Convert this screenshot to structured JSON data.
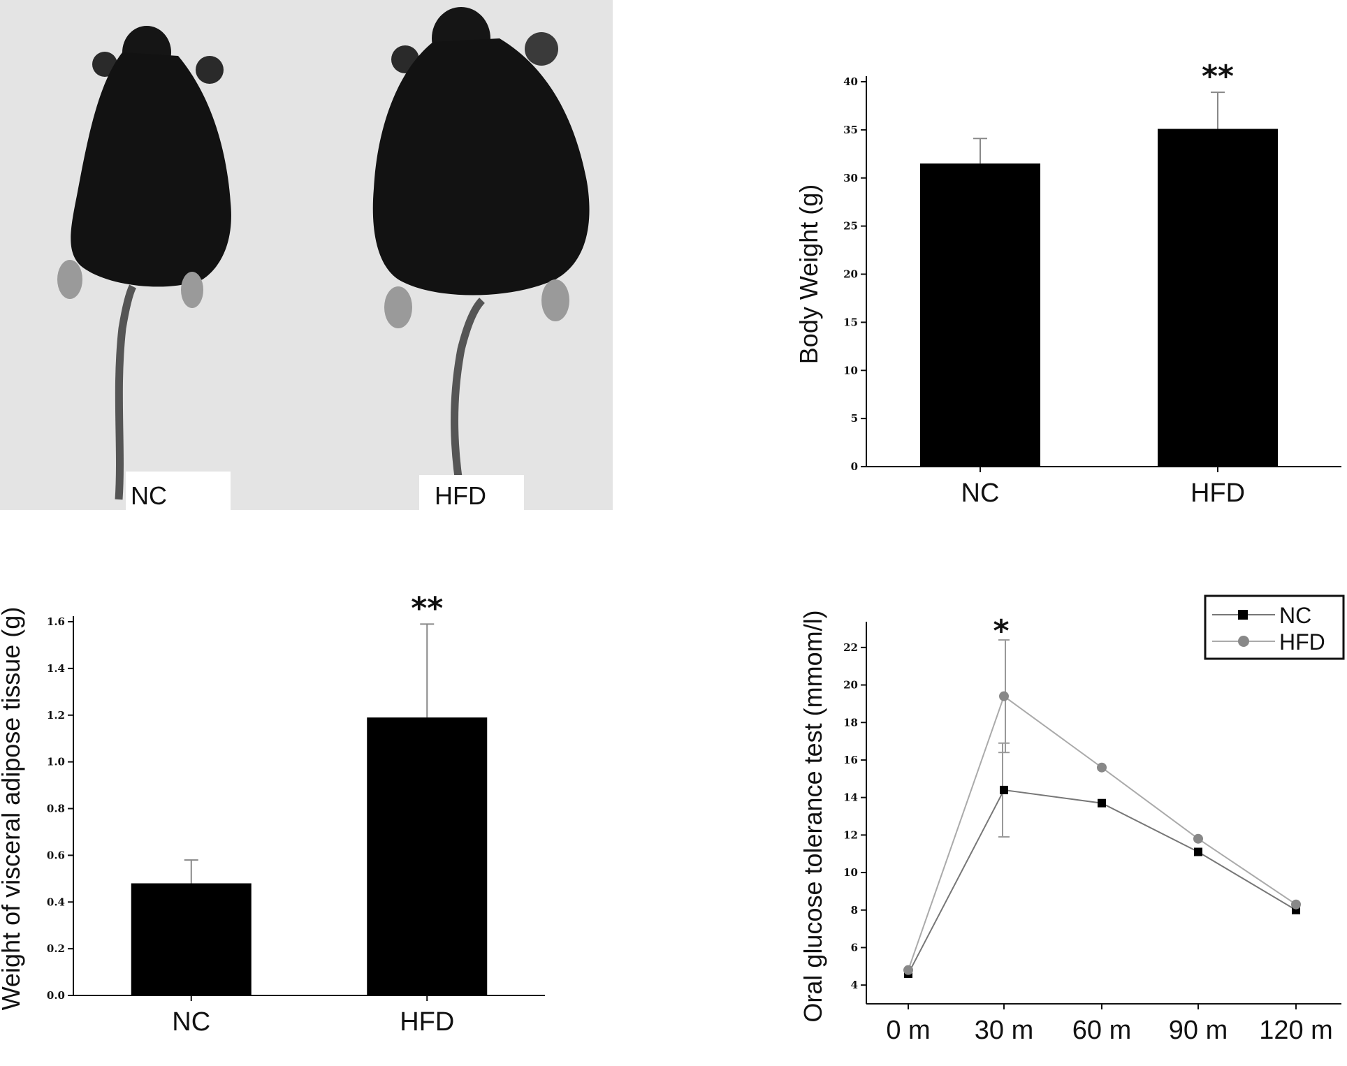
{
  "photo": {
    "labels": [
      "NC",
      "HFD"
    ]
  },
  "chart_data": [
    {
      "type": "bar",
      "categories": [
        "NC",
        "HFD"
      ],
      "values": [
        31.5,
        35.1
      ],
      "errors": [
        2.6,
        3.8
      ],
      "significance": [
        "",
        "**"
      ],
      "ylabel": "Body Weight (g)",
      "ylim": [
        0,
        40
      ],
      "yticks": [
        "0",
        "5",
        "10",
        "15",
        "20",
        "25",
        "30",
        "35",
        "40"
      ],
      "bar_color": "#000000"
    },
    {
      "type": "bar",
      "categories": [
        "NC",
        "HFD"
      ],
      "values": [
        0.48,
        1.19
      ],
      "errors": [
        0.1,
        0.4
      ],
      "significance": [
        "",
        "**"
      ],
      "ylabel": "Weight of visceral adipose tissue (g)",
      "ylim": [
        0,
        1.6
      ],
      "yticks": [
        "0.0",
        "0.2",
        "0.4",
        "0.6",
        "0.8",
        "1.0",
        "1.2",
        "1.4",
        "1.6"
      ],
      "bar_color": "#000000"
    },
    {
      "type": "line",
      "x": [
        "0 m",
        "30 m",
        "60 m",
        "90 m",
        "120 m"
      ],
      "series": [
        {
          "name": "NC",
          "values": [
            4.6,
            14.4,
            13.7,
            11.1,
            8.0
          ],
          "color": "#777777",
          "marker_color": "#000000",
          "marker": "square",
          "errors": [
            0,
            2.5,
            0,
            0,
            0
          ]
        },
        {
          "name": "HFD",
          "values": [
            4.8,
            19.4,
            15.6,
            11.8,
            8.3
          ],
          "color": "#aaaaaa",
          "marker_color": "#888888",
          "marker": "circle",
          "errors": [
            0,
            3.0,
            0,
            0,
            0
          ]
        }
      ],
      "significance": [
        "",
        "*",
        "",
        "",
        ""
      ],
      "ylabel": "Oral glucose tolerance test (mmom/l)",
      "ylim": [
        3,
        23
      ],
      "yticks": [
        "4",
        "6",
        "8",
        "10",
        "12",
        "14",
        "16",
        "18",
        "20",
        "22"
      ],
      "legend": "top-right"
    }
  ]
}
